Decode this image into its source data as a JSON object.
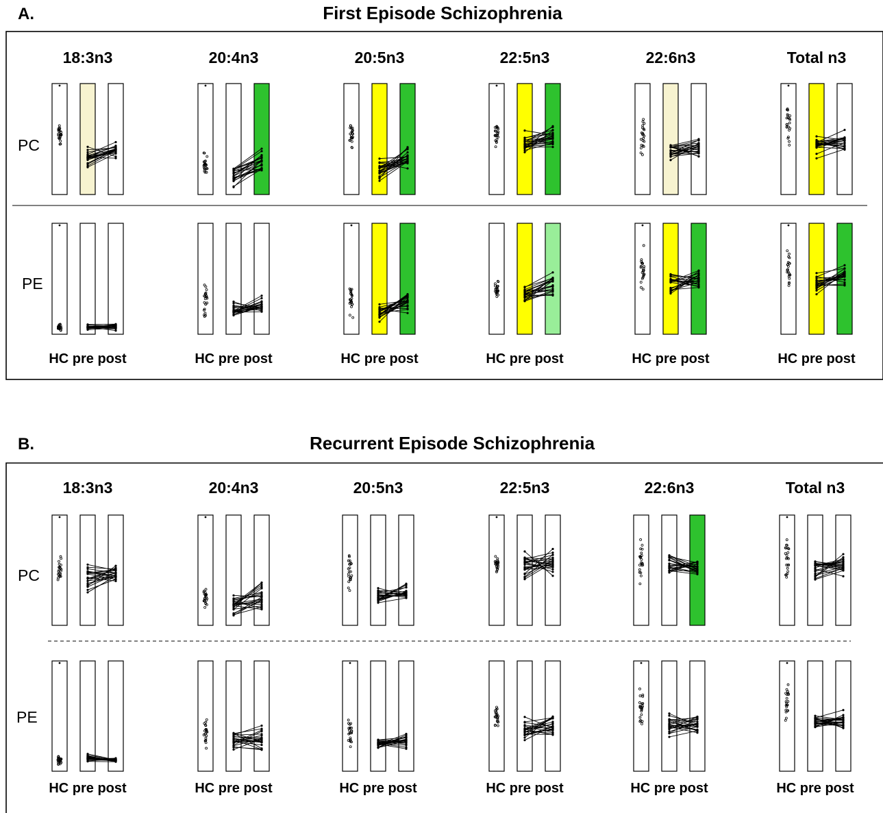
{
  "colors": {
    "yellow": "#ffff00",
    "pale_yellow": "#f7f3d0",
    "green": "#2ec22e",
    "light_green": "#99ee99",
    "frame": "#000000"
  },
  "labels": {
    "fatty_acids": [
      "18:3n3",
      "20:4n3",
      "20:5n3",
      "22:5n3",
      "22:6n3",
      "Total n3"
    ],
    "rows": [
      "PC",
      "PE"
    ],
    "groups": [
      "HC",
      "pre",
      "post"
    ],
    "group_labels_wide": [
      "HC  pre post",
      "HC  pre post",
      "HC pre post",
      "HC  pre post",
      "HC pre post",
      "HC pre post"
    ]
  },
  "chart_data": [
    {
      "type": "scatter",
      "panel_letter": "A.",
      "title": "First Episode Schizophrenia",
      "columns": [
        "18:3n3",
        "20:4n3",
        "20:5n3",
        "22:5n3",
        "22:6n3",
        "Total n3"
      ],
      "rows": [
        "PC",
        "PE"
      ],
      "groups": [
        "HC",
        "pre",
        "post"
      ],
      "highlight": {
        "PC": [
          [
            "none",
            "pale_yellow",
            "none"
          ],
          [
            "none",
            "none",
            "green"
          ],
          [
            "none",
            "yellow",
            "green"
          ],
          [
            "none",
            "yellow",
            "green"
          ],
          [
            "none",
            "pale_yellow",
            "none"
          ],
          [
            "none",
            "yellow",
            "none"
          ]
        ],
        "PE": [
          [
            "none",
            "none",
            "none"
          ],
          [
            "none",
            "none",
            "none"
          ],
          [
            "none",
            "yellow",
            "green"
          ],
          [
            "none",
            "yellow",
            "light_green"
          ],
          [
            "none",
            "yellow",
            "green"
          ],
          [
            "none",
            "yellow",
            "green"
          ]
        ]
      },
      "cells": {
        "PC": [
          {
            "hc_center": 0.55,
            "hc_spread": 0.16,
            "pre_center": 0.32,
            "pre_spread": 0.12,
            "post_center": 0.4,
            "post_spread": 0.1
          },
          {
            "hc_center": 0.28,
            "hc_spread": 0.17,
            "pre_center": 0.16,
            "pre_spread": 0.13,
            "post_center": 0.3,
            "post_spread": 0.18
          },
          {
            "hc_center": 0.55,
            "hc_spread": 0.2,
            "pre_center": 0.22,
            "pre_spread": 0.13,
            "post_center": 0.33,
            "post_spread": 0.16
          },
          {
            "hc_center": 0.55,
            "hc_spread": 0.16,
            "pre_center": 0.47,
            "pre_spread": 0.15,
            "post_center": 0.52,
            "post_spread": 0.16
          },
          {
            "hc_center": 0.55,
            "hc_spread": 0.28,
            "pre_center": 0.4,
            "pre_spread": 0.14,
            "post_center": 0.42,
            "post_spread": 0.14
          },
          {
            "hc_center": 0.6,
            "hc_spread": 0.25,
            "pre_center": 0.45,
            "pre_spread": 0.14,
            "post_center": 0.47,
            "post_spread": 0.14
          }
        ],
        "PE": [
          {
            "hc_center": 0.06,
            "hc_spread": 0.05,
            "pre_center": 0.06,
            "pre_spread": 0.04,
            "post_center": 0.07,
            "post_spread": 0.04
          },
          {
            "hc_center": 0.3,
            "hc_spread": 0.18,
            "pre_center": 0.22,
            "pre_spread": 0.1,
            "post_center": 0.25,
            "post_spread": 0.12
          },
          {
            "hc_center": 0.3,
            "hc_spread": 0.2,
            "pre_center": 0.2,
            "pre_spread": 0.1,
            "post_center": 0.28,
            "post_spread": 0.15
          },
          {
            "hc_center": 0.4,
            "hc_spread": 0.1,
            "pre_center": 0.35,
            "pre_spread": 0.12,
            "post_center": 0.45,
            "post_spread": 0.17
          },
          {
            "hc_center": 0.58,
            "hc_spread": 0.3,
            "pre_center": 0.45,
            "pre_spread": 0.15,
            "post_center": 0.5,
            "post_spread": 0.15
          },
          {
            "hc_center": 0.6,
            "hc_spread": 0.28,
            "pre_center": 0.45,
            "pre_spread": 0.15,
            "post_center": 0.52,
            "post_spread": 0.15
          }
        ]
      }
    },
    {
      "type": "scatter",
      "panel_letter": "B.",
      "title": "Recurrent Episode Schizophrenia",
      "columns": [
        "18:3n3",
        "20:4n3",
        "20:5n3",
        "22:5n3",
        "22:6n3",
        "Total n3"
      ],
      "rows": [
        "PC",
        "PE"
      ],
      "groups": [
        "HC",
        "pre",
        "post"
      ],
      "highlight": {
        "PC": [
          [
            "none",
            "none",
            "none"
          ],
          [
            "none",
            "none",
            "none"
          ],
          [
            "none",
            "none",
            "none"
          ],
          [
            "none",
            "none",
            "none"
          ],
          [
            "none",
            "none",
            "green"
          ],
          [
            "none",
            "none",
            "none"
          ]
        ],
        "PE": [
          [
            "none",
            "none",
            "none"
          ],
          [
            "none",
            "none",
            "none"
          ],
          [
            "none",
            "none",
            "none"
          ],
          [
            "none",
            "none",
            "none"
          ],
          [
            "none",
            "none",
            "none"
          ],
          [
            "none",
            "none",
            "none"
          ]
        ]
      },
      "cells": {
        "PC": [
          {
            "hc_center": 0.5,
            "hc_spread": 0.2,
            "pre_center": 0.45,
            "pre_spread": 0.16,
            "post_center": 0.46,
            "post_spread": 0.14
          },
          {
            "hc_center": 0.25,
            "hc_spread": 0.14,
            "pre_center": 0.18,
            "pre_spread": 0.14,
            "post_center": 0.26,
            "post_spread": 0.18
          },
          {
            "hc_center": 0.5,
            "hc_spread": 0.22,
            "pre_center": 0.27,
            "pre_spread": 0.12,
            "post_center": 0.28,
            "post_spread": 0.12
          },
          {
            "hc_center": 0.58,
            "hc_spread": 0.14,
            "pre_center": 0.55,
            "pre_spread": 0.18,
            "post_center": 0.56,
            "post_spread": 0.18
          },
          {
            "hc_center": 0.58,
            "hc_spread": 0.28,
            "pre_center": 0.55,
            "pre_spread": 0.16,
            "post_center": 0.52,
            "post_spread": 0.15
          },
          {
            "hc_center": 0.62,
            "hc_spread": 0.25,
            "pre_center": 0.52,
            "pre_spread": 0.14,
            "post_center": 0.54,
            "post_spread": 0.14
          }
        ],
        "PE": [
          {
            "hc_center": 0.1,
            "hc_spread": 0.06,
            "pre_center": 0.12,
            "pre_spread": 0.06,
            "post_center": 0.1,
            "post_spread": 0.03
          },
          {
            "hc_center": 0.35,
            "hc_spread": 0.2,
            "pre_center": 0.28,
            "pre_spread": 0.1,
            "post_center": 0.3,
            "post_spread": 0.16
          },
          {
            "hc_center": 0.35,
            "hc_spread": 0.2,
            "pre_center": 0.25,
            "pre_spread": 0.1,
            "post_center": 0.28,
            "post_spread": 0.12
          },
          {
            "hc_center": 0.5,
            "hc_spread": 0.12,
            "pre_center": 0.4,
            "pre_spread": 0.16,
            "post_center": 0.42,
            "post_spread": 0.18
          },
          {
            "hc_center": 0.58,
            "hc_spread": 0.3,
            "pre_center": 0.4,
            "pre_spread": 0.14,
            "post_center": 0.42,
            "post_spread": 0.14
          },
          {
            "hc_center": 0.6,
            "hc_spread": 0.28,
            "pre_center": 0.45,
            "pre_spread": 0.12,
            "post_center": 0.46,
            "post_spread": 0.12
          }
        ]
      }
    }
  ]
}
